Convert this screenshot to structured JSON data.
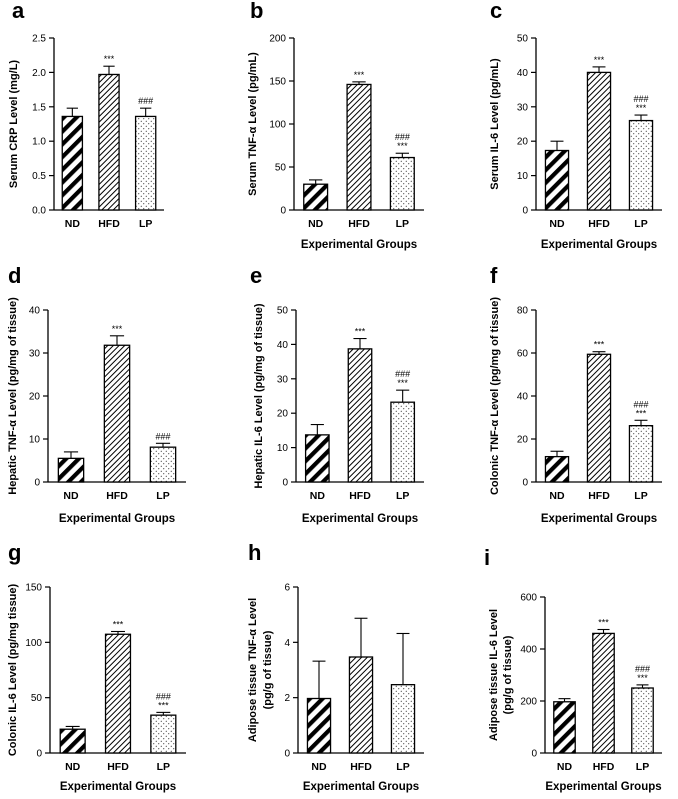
{
  "figure": {
    "background": "#ffffff",
    "ink": "#000000"
  },
  "chart_data": [
    {
      "id": "a",
      "letter": "a",
      "type": "bar",
      "title": "",
      "ylabel": "Serum CRP Level (mg/L)",
      "xlabel": "",
      "categories": [
        "ND",
        "HFD",
        "LP"
      ],
      "values": [
        1.36,
        1.97,
        1.36
      ],
      "errors": [
        0.12,
        0.12,
        0.12
      ],
      "ylim": [
        0,
        2.5
      ],
      "yticks": [
        0,
        0.5,
        1.0,
        1.5,
        2.0,
        2.5
      ],
      "ytick_labels": [
        "0.0",
        "0.5",
        "1.0",
        "1.5",
        "2.0",
        "2.5"
      ],
      "significance": [
        [],
        [
          "***"
        ],
        [
          "###"
        ]
      ],
      "patterns": [
        "diag-thick",
        "diag-fine",
        "dots"
      ]
    },
    {
      "id": "b",
      "letter": "b",
      "type": "bar",
      "title": "",
      "ylabel": "Serum TNF-α Level (pg/mL)",
      "xlabel": "Experimental Groups",
      "categories": [
        "ND",
        "HFD",
        "LP"
      ],
      "values": [
        30,
        146,
        61
      ],
      "errors": [
        5,
        3,
        5
      ],
      "ylim": [
        0,
        200
      ],
      "yticks": [
        0,
        50,
        100,
        150,
        200
      ],
      "ytick_labels": [
        "0",
        "50",
        "100",
        "150",
        "200"
      ],
      "significance": [
        [],
        [
          "***"
        ],
        [
          "###",
          "***"
        ]
      ],
      "patterns": [
        "diag-thick",
        "diag-fine",
        "dots"
      ]
    },
    {
      "id": "c",
      "letter": "c",
      "type": "bar",
      "title": "",
      "ylabel": "Serum IL-6 Level (pg/mL)",
      "xlabel": "Experimental Groups",
      "categories": [
        "ND",
        "HFD",
        "LP"
      ],
      "values": [
        17.3,
        40,
        26
      ],
      "errors": [
        2.7,
        1.6,
        1.6
      ],
      "ylim": [
        0,
        50
      ],
      "yticks": [
        0,
        10,
        20,
        30,
        40,
        50
      ],
      "ytick_labels": [
        "0",
        "10",
        "20",
        "30",
        "40",
        "50"
      ],
      "significance": [
        [],
        [
          "***"
        ],
        [
          "###",
          "***"
        ]
      ],
      "patterns": [
        "diag-thick",
        "diag-fine",
        "dots"
      ]
    },
    {
      "id": "d",
      "letter": "d",
      "type": "bar",
      "title": "",
      "ylabel": "Hepatic TNF-α Level (pg/mg of tissue)",
      "xlabel": "Experimental Groups",
      "categories": [
        "ND",
        "HFD",
        "LP"
      ],
      "values": [
        5.5,
        31.8,
        8.1
      ],
      "errors": [
        1.5,
        2.2,
        0.9
      ],
      "ylim": [
        0,
        40
      ],
      "yticks": [
        0,
        10,
        20,
        30,
        40
      ],
      "ytick_labels": [
        "0",
        "10",
        "20",
        "30",
        "40"
      ],
      "significance": [
        [],
        [
          "***"
        ],
        [
          "###"
        ]
      ],
      "patterns": [
        "diag-thick",
        "diag-fine",
        "dots"
      ]
    },
    {
      "id": "e",
      "letter": "e",
      "type": "bar",
      "title": "",
      "ylabel": "Hepatic IL-6 Level (pg/mg of tissue)",
      "xlabel": "Experimental Groups",
      "categories": [
        "ND",
        "HFD",
        "LP"
      ],
      "values": [
        13.7,
        38.7,
        23.2
      ],
      "errors": [
        3,
        3,
        3.5
      ],
      "ylim": [
        0,
        50
      ],
      "yticks": [
        0,
        10,
        20,
        30,
        40,
        50
      ],
      "ytick_labels": [
        "0",
        "10",
        "20",
        "30",
        "40",
        "50"
      ],
      "significance": [
        [],
        [
          "***"
        ],
        [
          "###",
          "***"
        ]
      ],
      "patterns": [
        "diag-thick",
        "diag-fine",
        "dots"
      ]
    },
    {
      "id": "f",
      "letter": "f",
      "type": "bar",
      "title": "",
      "ylabel": "Colonic TNF-α Level (pg/mg of tissue)",
      "xlabel": "Experimental Groups",
      "categories": [
        "ND",
        "HFD",
        "LP"
      ],
      "values": [
        11.8,
        59.4,
        26.2
      ],
      "errors": [
        2.5,
        1.2,
        2.5
      ],
      "ylim": [
        0,
        80
      ],
      "yticks": [
        0,
        20,
        40,
        60,
        80
      ],
      "ytick_labels": [
        "0",
        "20",
        "40",
        "60",
        "80"
      ],
      "significance": [
        [],
        [
          "***"
        ],
        [
          "###",
          "***"
        ]
      ],
      "patterns": [
        "diag-thick",
        "diag-fine",
        "dots"
      ]
    },
    {
      "id": "g",
      "letter": "g",
      "type": "bar",
      "title": "",
      "ylabel": "Colonic IL-6 Level (pg/mg tissue)",
      "xlabel": "Experimental Groups",
      "categories": [
        "ND",
        "HFD",
        "LP"
      ],
      "values": [
        21.5,
        107.3,
        34.2
      ],
      "errors": [
        2.5,
        2.5,
        2.5
      ],
      "ylim": [
        0,
        150
      ],
      "yticks": [
        0,
        50,
        100,
        150
      ],
      "ytick_labels": [
        "0",
        "50",
        "100",
        "150"
      ],
      "significance": [
        [],
        [
          "***"
        ],
        [
          "###",
          "***"
        ]
      ],
      "patterns": [
        "diag-thick",
        "diag-fine",
        "dots"
      ]
    },
    {
      "id": "h",
      "letter": "h",
      "type": "bar",
      "title": "",
      "ylabel": [
        "Adipose tissue TNF-α Level",
        "(pg/g of tissue)"
      ],
      "xlabel": "Experimental Groups",
      "categories": [
        "ND",
        "HFD",
        "LP"
      ],
      "values": [
        1.97,
        3.47,
        2.47
      ],
      "errors": [
        1.35,
        1.4,
        1.85
      ],
      "ylim": [
        0,
        6
      ],
      "yticks": [
        0,
        2,
        4,
        6
      ],
      "ytick_labels": [
        "0",
        "2",
        "4",
        "6"
      ],
      "significance": [
        [],
        [],
        []
      ],
      "patterns": [
        "diag-thick",
        "diag-fine",
        "dots"
      ]
    },
    {
      "id": "i",
      "letter": "i",
      "type": "bar",
      "title": "",
      "ylabel": [
        "Adipose tissue IL-6 Level",
        "(pg/g of tissue)"
      ],
      "xlabel": "Experimental Groups",
      "categories": [
        "ND",
        "HFD",
        "LP"
      ],
      "values": [
        197,
        460,
        250
      ],
      "errors": [
        12,
        15,
        12
      ],
      "ylim": [
        0,
        600
      ],
      "yticks": [
        0,
        200,
        400,
        600
      ],
      "ytick_labels": [
        "0",
        "200",
        "400",
        "600"
      ],
      "significance": [
        [],
        [
          "***"
        ],
        [
          "###",
          "***"
        ]
      ],
      "patterns": [
        "diag-thick",
        "diag-fine",
        "dots"
      ]
    }
  ]
}
